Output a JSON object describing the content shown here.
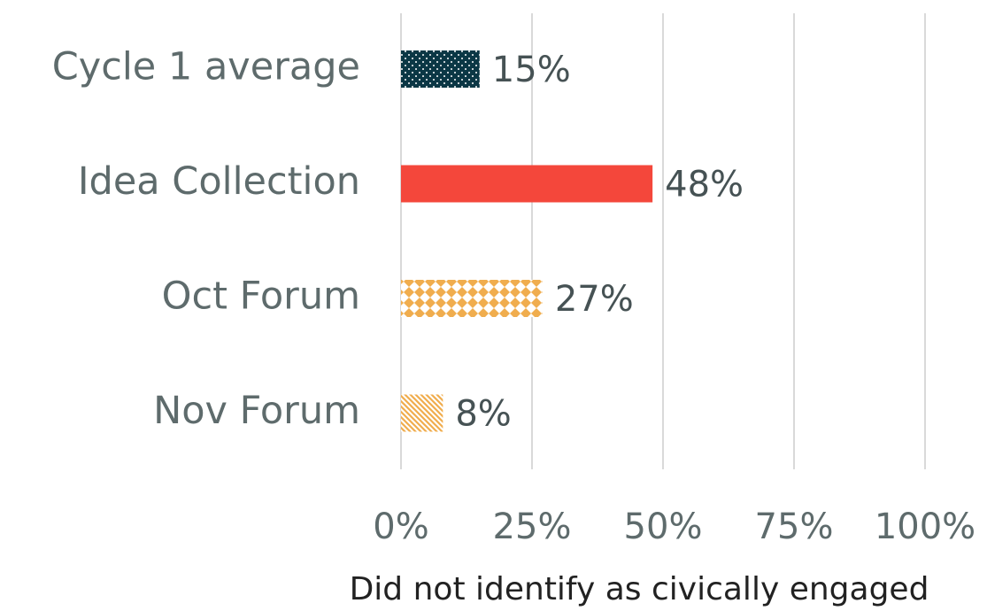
{
  "chart_data": {
    "type": "barh",
    "categories": [
      "Cycle 1 average",
      "Idea Collection",
      "Oct Forum",
      "Nov Forum"
    ],
    "values": [
      15,
      48,
      27,
      8
    ],
    "value_labels": [
      "15%",
      "48%",
      "27%",
      "8%"
    ],
    "colors": [
      "#0b3745",
      "#f4473b",
      "#f0ad4e",
      "#f0ad4e"
    ],
    "patterns": [
      "dots",
      "solid",
      "plaid",
      "diagonal"
    ],
    "xlim": [
      0,
      100
    ],
    "xticks": [
      {
        "value": 0,
        "label": "0%"
      },
      {
        "value": 25,
        "label": "25%"
      },
      {
        "value": 50,
        "label": "50%"
      },
      {
        "value": 75,
        "label": "75%"
      },
      {
        "value": 100,
        "label": "100%"
      }
    ],
    "grid": true,
    "x_label": "Did not identify as civically engaged"
  }
}
